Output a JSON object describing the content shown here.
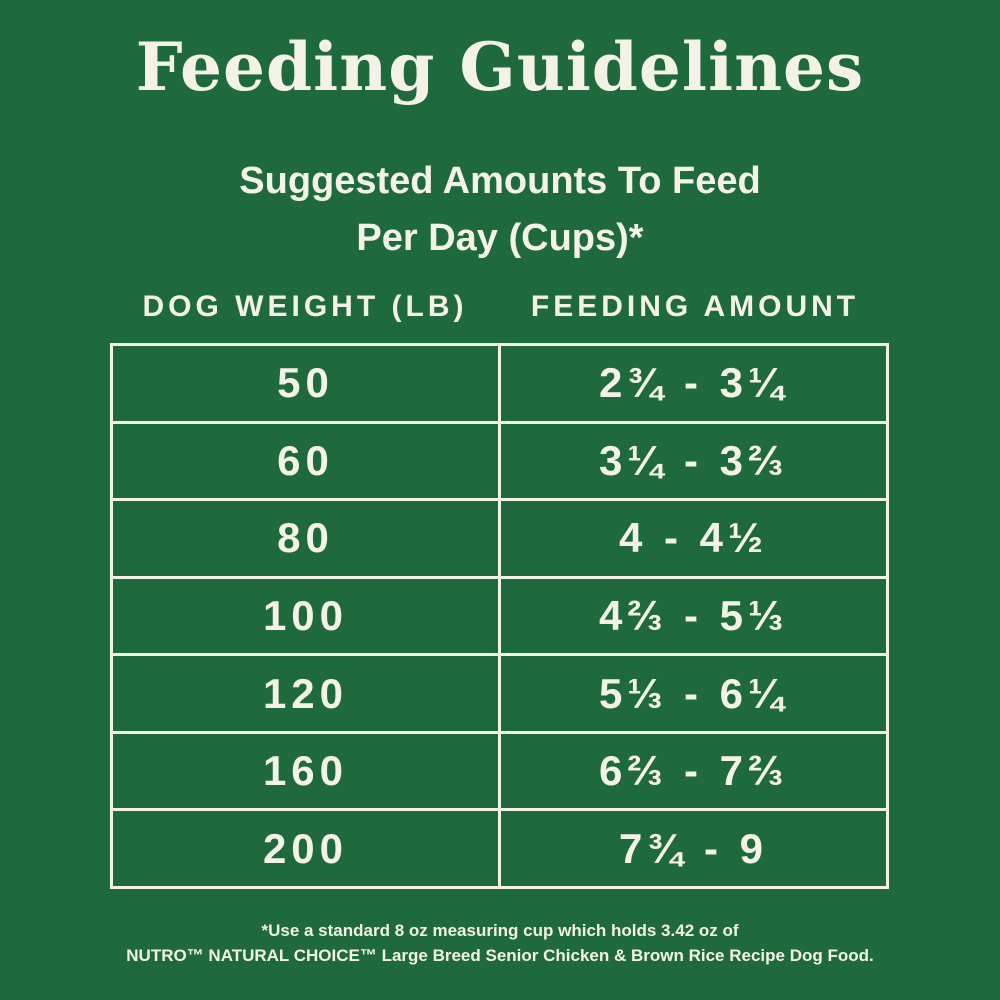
{
  "header": {
    "title": "Feeding Guidelines",
    "subtitle": [
      "Suggested Amounts To Feed",
      "Per Day (Cups)*"
    ]
  },
  "table": {
    "columns": [
      "DOG WEIGHT (LB)",
      "FEEDING AMOUNT"
    ],
    "rows": [
      [
        50,
        "2¾ - 3¼"
      ],
      [
        60,
        "3¼ - 3⅔"
      ],
      [
        80,
        "4 - 4½"
      ],
      [
        100,
        "4⅔ - 5⅓"
      ],
      [
        120,
        "5⅓ - 6¼"
      ],
      [
        160,
        "6⅔ - 7⅔"
      ],
      [
        200,
        "7¾ - 9"
      ]
    ]
  },
  "footnote": [
    "*Use a standard 8 oz measuring cup which holds 3.42 oz of",
    "NUTRO™ NATURAL CHOICE™ Large Breed Senior Chicken & Brown Rice Recipe Dog Food."
  ]
}
